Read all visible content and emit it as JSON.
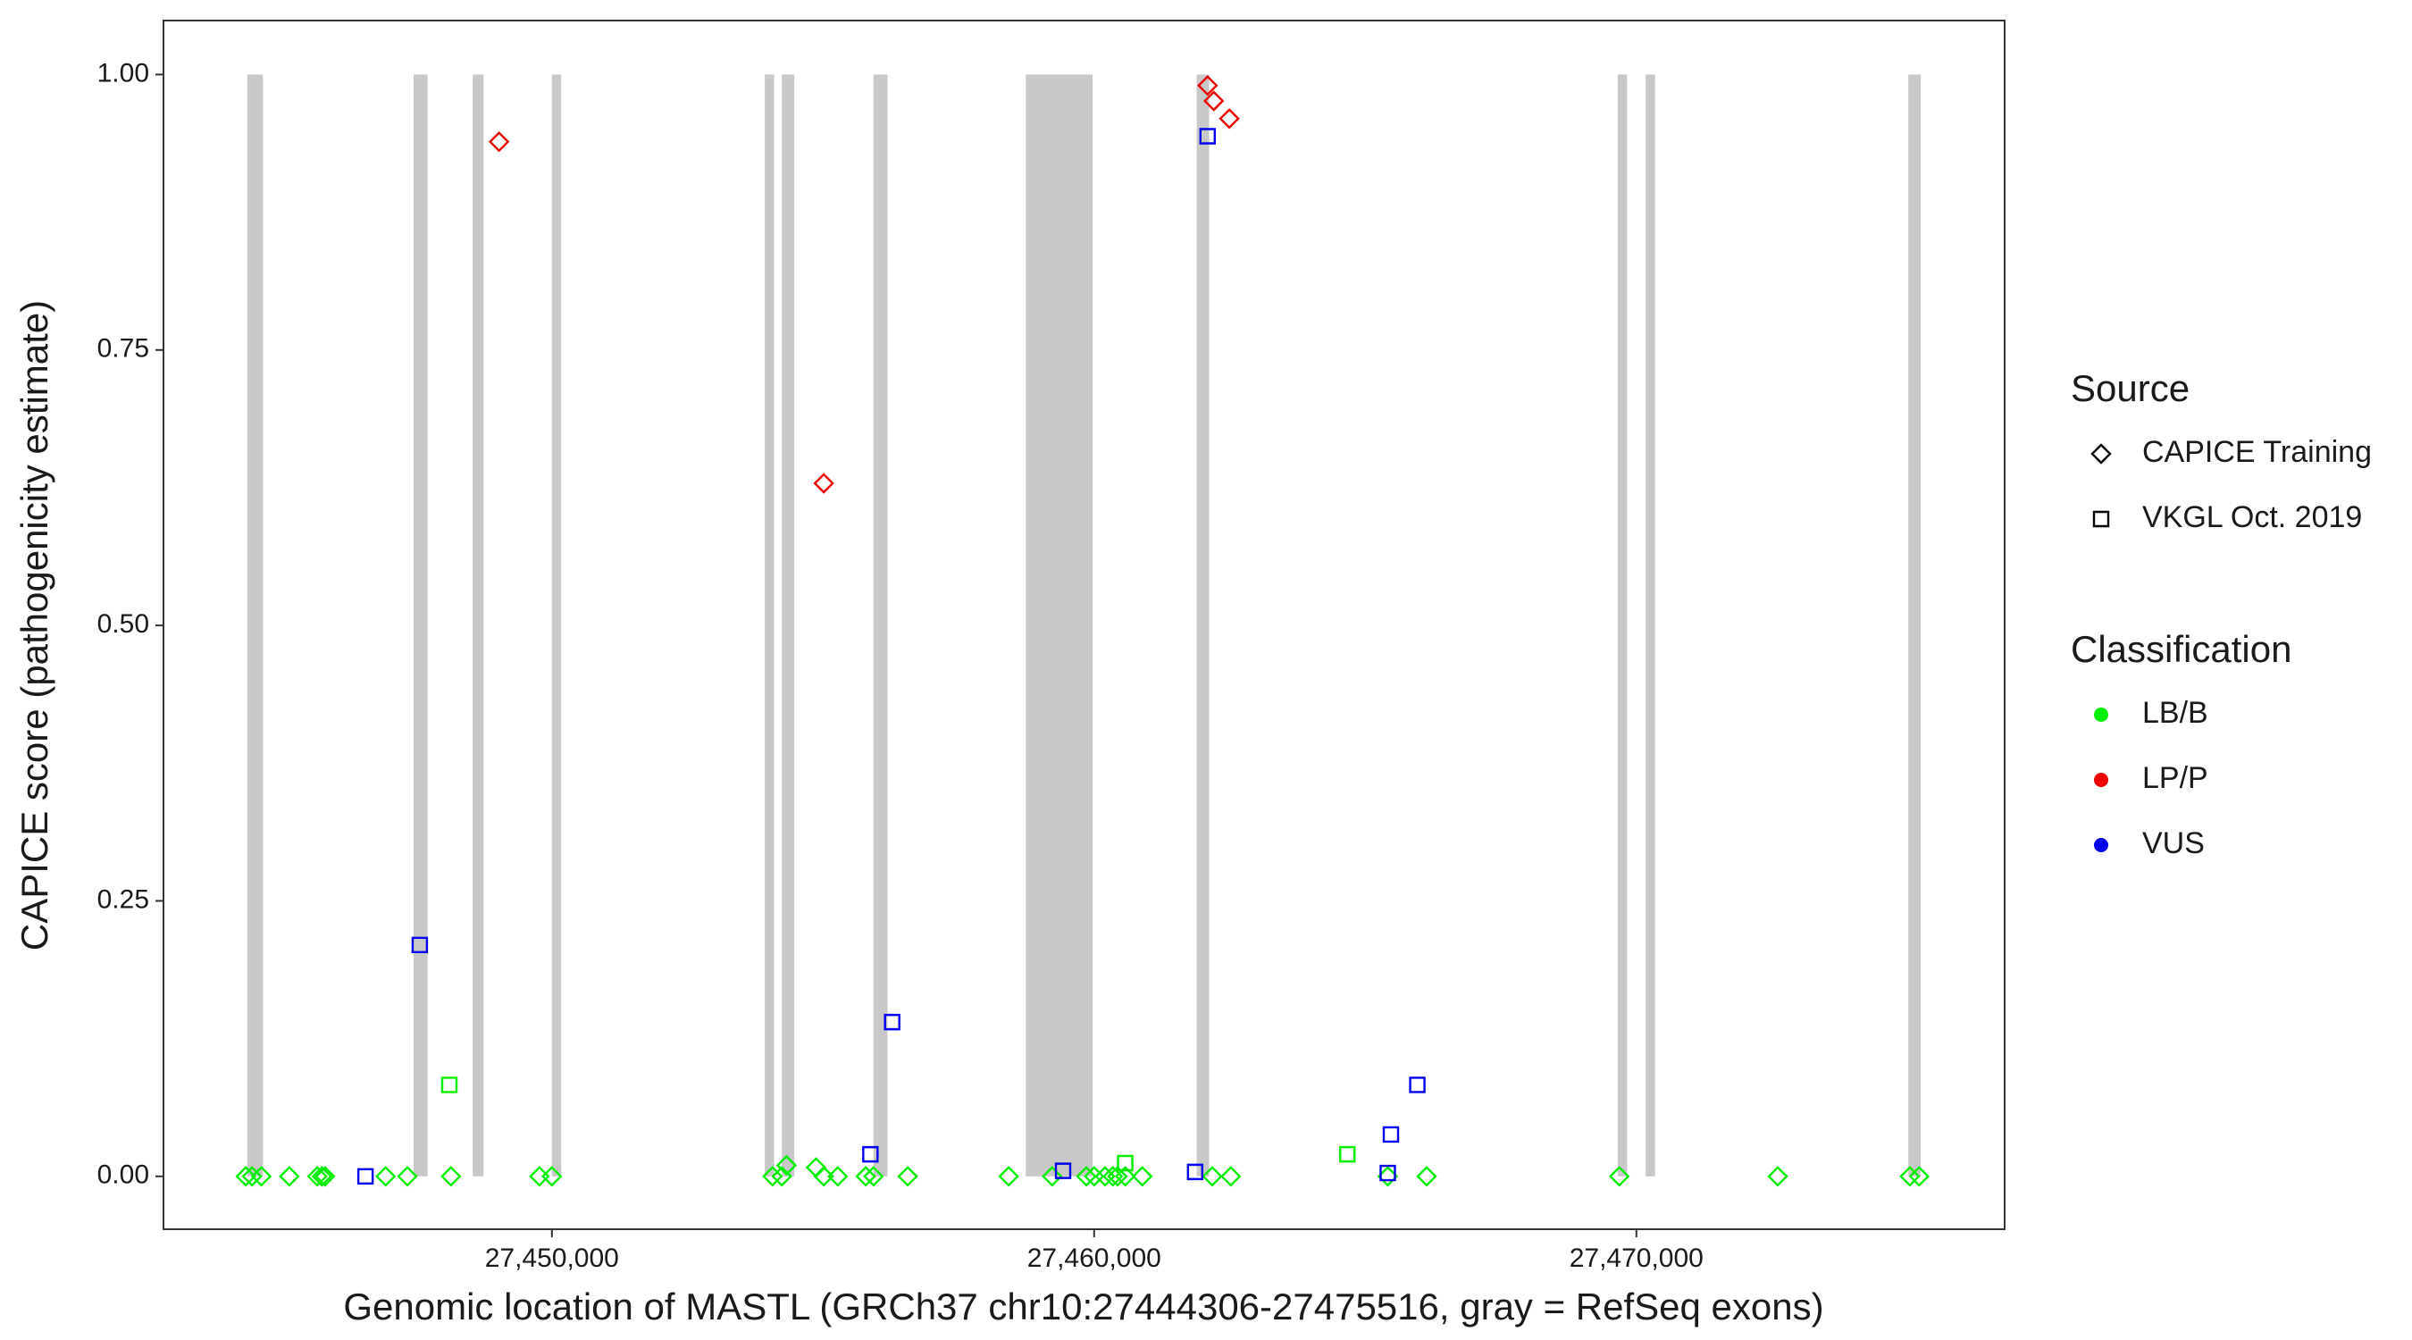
{
  "chart_data": {
    "type": "scatter",
    "xlabel": "Genomic location of MASTL (GRCh37 chr10:27444306-27475516, gray = RefSeq exons)",
    "ylabel": "CAPICE score (pathogenicity estimate)",
    "xlim": [
      27442837,
      27476791
    ],
    "ylim": [
      -0.048,
      1.049
    ],
    "xticks": [
      {
        "value": 27450000,
        "label": "27,450,000"
      },
      {
        "value": 27460000,
        "label": "27,460,000"
      },
      {
        "value": 27470000,
        "label": "27,470,000"
      }
    ],
    "yticks": [
      {
        "value": 0,
        "label": "0.00"
      },
      {
        "value": 0.25,
        "label": "0.25"
      },
      {
        "value": 0.5,
        "label": "0.50"
      },
      {
        "value": 0.75,
        "label": "0.75"
      },
      {
        "value": 1,
        "label": "1.00"
      }
    ],
    "exon_color": "#c8c8c8",
    "exons": [
      [
        27444384,
        27444670
      ],
      [
        27447450,
        27447708
      ],
      [
        27448539,
        27448739
      ],
      [
        27450000,
        27450172
      ],
      [
        27453926,
        27454097
      ],
      [
        27454241,
        27454470
      ],
      [
        27455931,
        27456189
      ],
      [
        27458739,
        27459971
      ],
      [
        27461891,
        27462120
      ],
      [
        27469656,
        27469828
      ],
      [
        27470172,
        27470344
      ],
      [
        27475014,
        27475244
      ]
    ],
    "source_legend_title": "Source",
    "classification_legend_title": "Classification",
    "classifications": [
      {
        "name": "LB/B",
        "color": "#00ee00"
      },
      {
        "name": "LP/P",
        "color": "#ee0000"
      },
      {
        "name": "VUS",
        "color": "#0000ee"
      }
    ],
    "series": [
      {
        "name": "CAPICE Training",
        "shape": "diamond",
        "x": [
          27449026,
          27455014,
          27462092,
          27462206,
          27462493,
          27444355,
          27444470,
          27444642,
          27445158,
          27445673,
          27445759,
          27445817,
          27446934,
          27447335,
          27448138,
          27449771,
          27450000,
          27454069,
          27454241,
          27454327,
          27454871,
          27455014,
          27455272,
          27455788,
          27455931,
          27456562,
          27458424,
          27459226,
          27459857,
          27460000,
          27460201,
          27460344,
          27460430,
          27460573,
          27460888,
          27462178,
          27462521,
          27465415,
          27466132,
          27469685,
          27472607,
          27475043,
          27475215
        ],
        "y": [
          0.939,
          0.629,
          0.99,
          0.976,
          0.96,
          0,
          0,
          0,
          0,
          0,
          0,
          0,
          0,
          0,
          0,
          0,
          0,
          0,
          0,
          0.01,
          0.008,
          0,
          0,
          0,
          0,
          0,
          0,
          0,
          0,
          0,
          0,
          0,
          0,
          0,
          0,
          0,
          0,
          0,
          0,
          0,
          0,
          0,
          0
        ],
        "classification": [
          "LP/P",
          "LP/P",
          "LP/P",
          "LP/P",
          "LP/P",
          "LB/B",
          "LB/B",
          "LB/B",
          "LB/B",
          "LB/B",
          "LB/B",
          "LB/B",
          "LB/B",
          "LB/B",
          "LB/B",
          "LB/B",
          "LB/B",
          "LB/B",
          "LB/B",
          "LB/B",
          "LB/B",
          "LB/B",
          "LB/B",
          "LB/B",
          "LB/B",
          "LB/B",
          "LB/B",
          "LB/B",
          "LB/B",
          "LB/B",
          "LB/B",
          "LB/B",
          "LB/B",
          "LB/B",
          "LB/B",
          "LB/B",
          "LB/B",
          "LB/B",
          "LB/B",
          "LB/B",
          "LB/B",
          "LB/B",
          "LB/B"
        ]
      },
      {
        "name": "VKGL Oct. 2019",
        "shape": "square",
        "x": [
          27446562,
          27447564,
          27455874,
          27456275,
          27459427,
          27461862,
          27462092,
          27465415,
          27465473,
          27465960,
          27448109,
          27460573,
          27464670
        ],
        "y": [
          0,
          0.21,
          0.02,
          0.14,
          0.005,
          0.004,
          0.944,
          0.003,
          0.038,
          0.083,
          0.083,
          0.012,
          0.02
        ],
        "classification": [
          "VUS",
          "VUS",
          "VUS",
          "VUS",
          "VUS",
          "VUS",
          "VUS",
          "VUS",
          "VUS",
          "VUS",
          "LB/B",
          "LB/B",
          "LB/B"
        ]
      }
    ]
  }
}
